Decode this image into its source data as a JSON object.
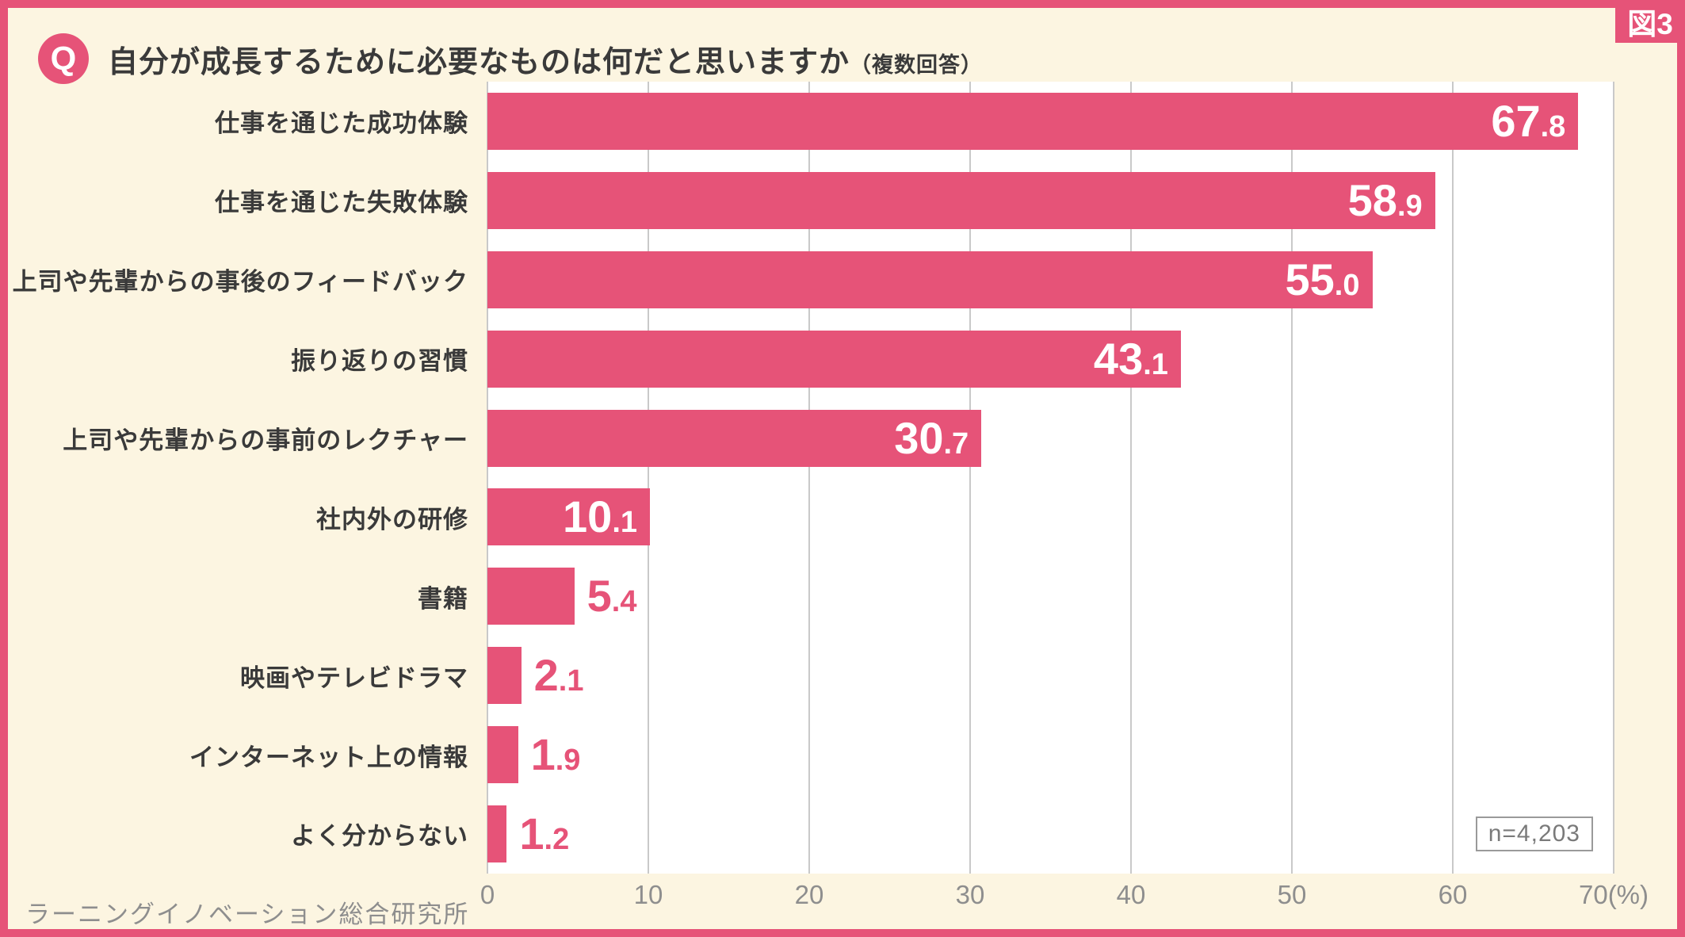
{
  "figure_tag": "図3",
  "header": {
    "q_badge": "Q",
    "title": "自分が成長するために必要なものは何だと思いますか",
    "title_suffix": "（複数回答）"
  },
  "chart_data": {
    "type": "bar",
    "orientation": "horizontal",
    "title": "自分が成長するために必要なものは何だと思いますか（複数回答）",
    "categories": [
      "仕事を通じた成功体験",
      "仕事を通じた失敗体験",
      "上司や先輩からの事後のフィードバック",
      "振り返りの習慣",
      "上司や先輩からの事前のレクチャー",
      "社内外の研修",
      "書籍",
      "映画やテレビドラマ",
      "インターネット上の情報",
      "よく分からない"
    ],
    "values": [
      67.8,
      58.9,
      55.0,
      43.1,
      30.7,
      10.1,
      5.4,
      2.1,
      1.9,
      1.2
    ],
    "unit": "%",
    "xlim": [
      0,
      70
    ],
    "x_ticks": [
      0,
      10,
      20,
      30,
      40,
      50,
      60,
      70
    ],
    "x_tick_labels": [
      "0",
      "10",
      "20",
      "30",
      "40",
      "50",
      "60",
      "70(%)"
    ],
    "grid": true,
    "legend": "none",
    "sample_size_label": "n=4,203"
  },
  "footer": {
    "source": "ラーニングイノベーション総合研究所"
  },
  "colors": {
    "bar": "#e65378",
    "border": "#e65378",
    "background": "#fcf5e1",
    "plot_background": "#ffffff",
    "grid": "#c9c9c9",
    "text_dark": "#3a3a3a",
    "text_gray": "#8e8e8e",
    "value_inside": "#ffffff",
    "nbox_border": "#9a9a9a",
    "nbox_text": "#7a7a7a"
  }
}
